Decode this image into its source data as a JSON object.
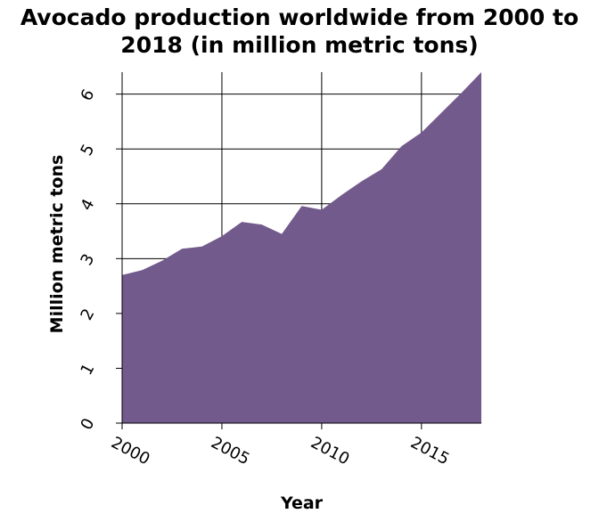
{
  "chart_data": {
    "type": "area",
    "title_line1": "Avocado production worldwide from 2000 to",
    "title_line2": "2018 (in million metric tons)",
    "xlabel": "Year",
    "ylabel": "Million metric tons",
    "x": [
      2000,
      2001,
      2002,
      2003,
      2004,
      2005,
      2006,
      2007,
      2008,
      2009,
      2010,
      2011,
      2012,
      2013,
      2014,
      2015,
      2016,
      2017,
      2018
    ],
    "series": [
      {
        "values": [
          2.7,
          2.79,
          2.96,
          3.18,
          3.22,
          3.41,
          3.67,
          3.62,
          3.45,
          3.96,
          3.89,
          4.16,
          4.41,
          4.63,
          5.05,
          5.3,
          5.66,
          6.02,
          6.4
        ]
      }
    ],
    "xlim": [
      2000,
      2018
    ],
    "ylim": [
      0,
      6.4
    ],
    "x_ticks": [
      "2000",
      "2005",
      "2010",
      "2015"
    ],
    "y_ticks": [
      "0",
      "1",
      "2",
      "3",
      "4",
      "5",
      "6"
    ],
    "grid": true,
    "fill_color": "#725a8c"
  }
}
